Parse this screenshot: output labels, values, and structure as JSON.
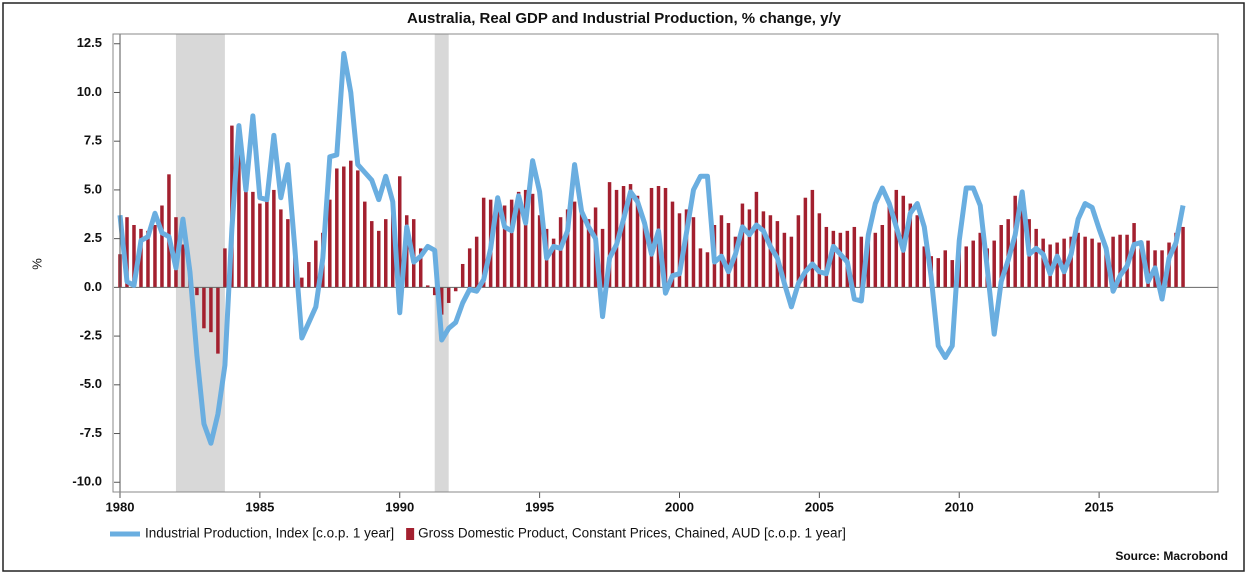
{
  "chart_data": {
    "type": "combo",
    "title": "Australia, Real GDP and Industrial Production, % change, y/y",
    "y_label": "%",
    "source": "Source: Macrobond",
    "x": [
      1980,
      1980.25,
      1980.5,
      1980.75,
      1981,
      1981.25,
      1981.5,
      1981.75,
      1982,
      1982.25,
      1982.5,
      1982.75,
      1983,
      1983.25,
      1983.5,
      1983.75,
      1984,
      1984.25,
      1984.5,
      1984.75,
      1985,
      1985.25,
      1985.5,
      1985.75,
      1986,
      1986.25,
      1986.5,
      1986.75,
      1987,
      1987.25,
      1987.5,
      1987.75,
      1988,
      1988.25,
      1988.5,
      1988.75,
      1989,
      1989.25,
      1989.5,
      1989.75,
      1990,
      1990.25,
      1990.5,
      1990.75,
      1991,
      1991.25,
      1991.5,
      1991.75,
      1992,
      1992.25,
      1992.5,
      1992.75,
      1993,
      1993.25,
      1993.5,
      1993.75,
      1994,
      1994.25,
      1994.5,
      1994.75,
      1995,
      1995.25,
      1995.5,
      1995.75,
      1996,
      1996.25,
      1996.5,
      1996.75,
      1997,
      1997.25,
      1997.5,
      1997.75,
      1998,
      1998.25,
      1998.5,
      1998.75,
      1999,
      1999.25,
      1999.5,
      1999.75,
      2000,
      2000.25,
      2000.5,
      2000.75,
      2001,
      2001.25,
      2001.5,
      2001.75,
      2002,
      2002.25,
      2002.5,
      2002.75,
      2003,
      2003.25,
      2003.5,
      2003.75,
      2004,
      2004.25,
      2004.5,
      2004.75,
      2005,
      2005.25,
      2005.5,
      2005.75,
      2006,
      2006.25,
      2006.5,
      2006.75,
      2007,
      2007.25,
      2007.5,
      2007.75,
      2008,
      2008.25,
      2008.5,
      2008.75,
      2009,
      2009.25,
      2009.5,
      2009.75,
      2010,
      2010.25,
      2010.5,
      2010.75,
      2011,
      2011.25,
      2011.5,
      2011.75,
      2012,
      2012.25,
      2012.5,
      2012.75,
      2013,
      2013.25,
      2013.5,
      2013.75,
      2014,
      2014.25,
      2014.5,
      2014.75,
      2015,
      2015.25,
      2015.5,
      2015.75,
      2016,
      2016.25,
      2016.5,
      2016.75,
      2017,
      2017.25,
      2017.5,
      2017.75,
      2018
    ],
    "series": [
      {
        "name": "Industrial Production, Index [c.o.p. 1 year]",
        "type": "line",
        "color": "#6aaee0",
        "values": [
          3.7,
          0.3,
          0.1,
          2.4,
          2.6,
          3.8,
          2.8,
          2.6,
          1.0,
          3.5,
          0.8,
          -3.5,
          -7.0,
          -8.0,
          -6.5,
          -4.0,
          3.0,
          8.3,
          5.0,
          8.8,
          4.6,
          4.5,
          7.8,
          4.6,
          6.3,
          2.0,
          -2.6,
          -1.8,
          -1.0,
          1.5,
          6.7,
          6.8,
          12.0,
          10.0,
          6.3,
          5.9,
          5.5,
          4.5,
          5.7,
          4.4,
          -1.3,
          3.1,
          1.3,
          1.6,
          2.1,
          1.9,
          -2.7,
          -2.1,
          -1.8,
          -0.8,
          -0.1,
          -0.2,
          0.4,
          2.0,
          4.6,
          3.1,
          2.9,
          4.7,
          3.3,
          6.5,
          4.9,
          1.5,
          2.1,
          2.0,
          2.9,
          6.3,
          3.9,
          3.1,
          2.5,
          -1.5,
          1.5,
          2.2,
          3.5,
          4.9,
          4.4,
          3.3,
          1.7,
          2.9,
          -0.3,
          0.6,
          0.7,
          2.8,
          5.0,
          5.7,
          5.7,
          1.3,
          1.6,
          0.8,
          1.7,
          3.1,
          2.7,
          3.2,
          2.9,
          2.1,
          1.5,
          0.2,
          -1.0,
          0.2,
          0.8,
          1.2,
          0.8,
          0.7,
          2.1,
          1.7,
          1.3,
          -0.6,
          -0.7,
          2.7,
          4.3,
          5.1,
          4.3,
          3.1,
          1.9,
          3.8,
          4.3,
          3.1,
          0.5,
          -3.0,
          -3.6,
          -3.0,
          2.4,
          5.1,
          5.1,
          4.2,
          1.0,
          -2.4,
          0.3,
          1.4,
          2.7,
          4.9,
          1.7,
          2.0,
          1.7,
          0.7,
          1.6,
          0.8,
          1.7,
          3.5,
          4.3,
          4.1,
          3.0,
          2.0,
          -0.2,
          0.6,
          1.1,
          2.2,
          2.3,
          0.3,
          1.0,
          -0.6,
          1.5,
          2.3,
          4.2
        ]
      },
      {
        "name": "Gross Domestic Product, Constant Prices, Chained, AUD [c.o.p. 1 year]",
        "type": "bar",
        "color": "#a3202f",
        "values": [
          1.7,
          3.6,
          3.2,
          3.0,
          2.9,
          3.2,
          4.2,
          5.8,
          3.6,
          2.2,
          1.0,
          -0.4,
          -2.1,
          -2.3,
          -3.4,
          2.0,
          8.3,
          8.3,
          6.3,
          4.9,
          4.3,
          4.5,
          5.0,
          4.0,
          3.5,
          1.6,
          0.5,
          1.3,
          2.4,
          2.8,
          4.5,
          6.1,
          6.2,
          6.5,
          6.0,
          4.4,
          3.4,
          2.9,
          3.5,
          4.4,
          5.7,
          3.7,
          3.5,
          2.0,
          0.1,
          -0.4,
          -1.4,
          -0.8,
          -0.2,
          1.2,
          2.0,
          2.6,
          4.6,
          4.5,
          3.9,
          4.2,
          4.5,
          4.9,
          5.0,
          4.8,
          3.7,
          3.0,
          2.5,
          3.6,
          4.0,
          4.4,
          4.0,
          3.5,
          4.1,
          3.0,
          5.4,
          5.0,
          5.2,
          5.3,
          4.7,
          3.3,
          5.1,
          5.2,
          5.1,
          4.4,
          3.8,
          4.0,
          3.6,
          2.0,
          1.8,
          3.2,
          3.7,
          3.3,
          2.6,
          4.3,
          4.0,
          4.9,
          3.9,
          3.7,
          3.4,
          2.8,
          2.6,
          3.7,
          4.6,
          5.0,
          3.8,
          3.1,
          2.9,
          2.8,
          2.9,
          3.1,
          2.6,
          2.5,
          2.8,
          3.2,
          4.3,
          5.0,
          4.7,
          4.3,
          3.7,
          2.1,
          1.6,
          1.5,
          1.9,
          1.4,
          2.1,
          2.1,
          2.4,
          2.8,
          2.0,
          2.4,
          3.2,
          3.5,
          4.7,
          4.5,
          3.5,
          3.0,
          2.5,
          2.2,
          2.3,
          2.5,
          2.6,
          2.8,
          2.6,
          2.5,
          2.3,
          2.1,
          2.6,
          2.7,
          2.7,
          3.3,
          2.0,
          2.4,
          1.9,
          1.9,
          2.3,
          2.8,
          3.1
        ]
      }
    ],
    "recessions": [
      [
        1982,
        1983.75
      ],
      [
        1991.25,
        1991.75
      ]
    ],
    "xlim": [
      1980,
      2019.25
    ],
    "ylim": [
      -10.5,
      13
    ],
    "xticks": [
      1980,
      1985,
      1990,
      1995,
      2000,
      2005,
      2010,
      2015
    ],
    "yticks": [
      12.5,
      {
        "value": 10,
        "label": "10.0"
      },
      7.5,
      {
        "value": 5,
        "label": "5.0"
      },
      2.5,
      {
        "value": 0,
        "label": "0.0"
      },
      -2.5,
      {
        "value": -5,
        "label": "-5.0"
      },
      -7.5,
      {
        "value": -10,
        "label": "-10.0"
      }
    ]
  }
}
